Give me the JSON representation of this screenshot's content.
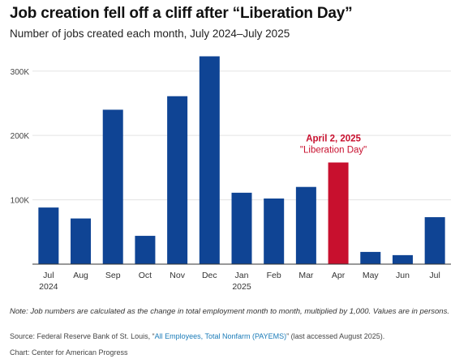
{
  "header": {
    "title": "Job creation fell off a cliff after “Liberation Day”",
    "subtitle": "Number of jobs created each month, July 2024–July 2025"
  },
  "colors": {
    "bar": "#0f4494",
    "highlight": "#c8102e",
    "grid": "#e3e3e3",
    "axis": "#333333"
  },
  "chart_data": {
    "type": "bar",
    "categories": [
      "Jul",
      "Aug",
      "Sep",
      "Oct",
      "Nov",
      "Dec",
      "Jan",
      "Feb",
      "Mar",
      "Apr",
      "May",
      "Jun",
      "Jul"
    ],
    "category_sublabels": [
      "2024",
      "",
      "",
      "",
      "",
      "",
      "2025",
      "",
      "",
      "",
      "",
      "",
      ""
    ],
    "values": [
      88000,
      71000,
      240000,
      44000,
      261000,
      323000,
      111000,
      102000,
      120000,
      158000,
      19000,
      14000,
      73000
    ],
    "highlight_index": 9,
    "ylim": [
      0,
      340000
    ],
    "yticks": [
      100000,
      200000,
      300000
    ],
    "ytick_labels": [
      "100K",
      "200K",
      "300K"
    ],
    "grid": true,
    "annotation": {
      "title": "April 2, 2025",
      "text": "\"Liberation Day\"",
      "category_index": 9
    }
  },
  "footer": {
    "note": "Note: Job numbers are calculated as the change in total employment month to month, multiplied by 1,000. Values are in persons.",
    "source_prefix": "Source: Federal Reserve Bank of St. Louis, “",
    "source_link": "All Employees, Total Nonfarm (PAYEMS)",
    "source_suffix": "” (last accessed August 2025).",
    "credit": "Chart: Center for American Progress"
  }
}
